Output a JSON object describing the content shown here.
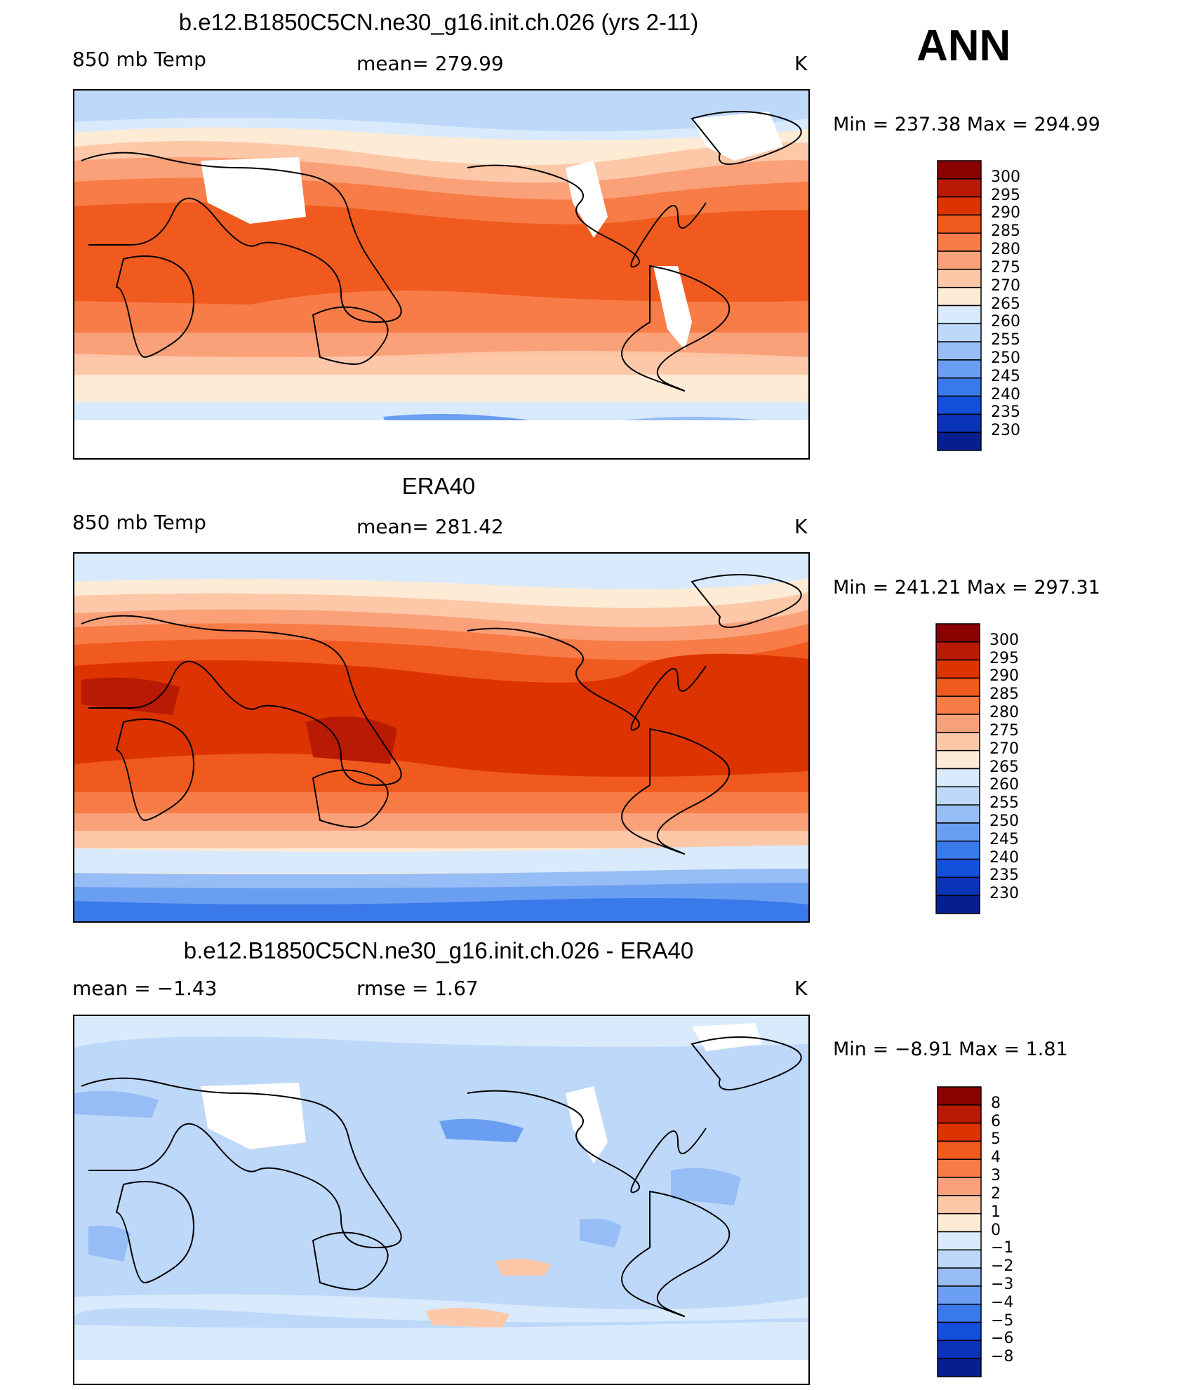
{
  "season": "ANN",
  "panels": [
    {
      "title": "b.e12.B1850C5CN.ne30_g16.init.ch.026 (yrs 2-11)",
      "left_label": "850 mb Temp",
      "center_label": "mean=  279.99",
      "units": "K",
      "minmax": "Min  =  237.38  Max  =  294.99"
    },
    {
      "title": "ERA40",
      "left_label": "850 mb Temp",
      "center_label": "mean=  281.42",
      "units": "K",
      "minmax": "Min  =  241.21  Max  =  297.31"
    },
    {
      "title": "b.e12.B1850C5CN.ne30_g16.init.ch.026 - ERA40",
      "left_label": "mean  =    −1.43",
      "center_label": "rmse  =     1.67",
      "units": "K",
      "minmax": "Min  =    −8.91  Max  =      1.81"
    }
  ],
  "chart_data": [
    {
      "type": "heatmap",
      "title": "b.e12.B1850C5CN.ne30_g16.init.ch.026 (yrs 2-11)",
      "variable": "850 mb Temp",
      "units": "K",
      "mean": 279.99,
      "min": 237.38,
      "max": 294.99,
      "colorbar_levels": [
        300,
        295,
        290,
        285,
        280,
        275,
        270,
        265,
        260,
        255,
        250,
        245,
        240,
        235,
        230
      ],
      "colorbar_colors": [
        "#8b0000",
        "#b81a04",
        "#dd3300",
        "#f15a1e",
        "#f77c47",
        "#fba17a",
        "#fdc8a8",
        "#feebd6",
        "#d8eafb",
        "#bed8fa",
        "#97bdf6",
        "#6a9ef1",
        "#3a79ea",
        "#1450dc",
        "#0a34b8",
        "#061f8e"
      ]
    },
    {
      "type": "heatmap",
      "title": "ERA40",
      "variable": "850 mb Temp",
      "units": "K",
      "mean": 281.42,
      "min": 241.21,
      "max": 297.31,
      "colorbar_levels": [
        300,
        295,
        290,
        285,
        280,
        275,
        270,
        265,
        260,
        255,
        250,
        245,
        240,
        235,
        230
      ],
      "colorbar_colors": [
        "#8b0000",
        "#b81a04",
        "#dd3300",
        "#f15a1e",
        "#f77c47",
        "#fba17a",
        "#fdc8a8",
        "#feebd6",
        "#d8eafb",
        "#bed8fa",
        "#97bdf6",
        "#6a9ef1",
        "#3a79ea",
        "#1450dc",
        "#0a34b8",
        "#061f8e"
      ]
    },
    {
      "type": "heatmap",
      "title": "b.e12.B1850C5CN.ne30_g16.init.ch.026 - ERA40",
      "units": "K",
      "mean": -1.43,
      "rmse": 1.67,
      "min": -8.91,
      "max": 1.81,
      "colorbar_levels": [
        "8",
        "6",
        "5",
        "4",
        "3",
        "2",
        "1",
        "0",
        "−1",
        "−2",
        "−3",
        "−4",
        "−5",
        "−6",
        "−8"
      ],
      "colorbar_colors": [
        "#8b0000",
        "#b81a04",
        "#dd3300",
        "#f15a1e",
        "#f77c47",
        "#fba17a",
        "#fdc8a8",
        "#feebd6",
        "#d8eafb",
        "#bed8fa",
        "#97bdf6",
        "#6a9ef1",
        "#3a79ea",
        "#1450dc",
        "#0a34b8",
        "#061f8e"
      ]
    }
  ]
}
